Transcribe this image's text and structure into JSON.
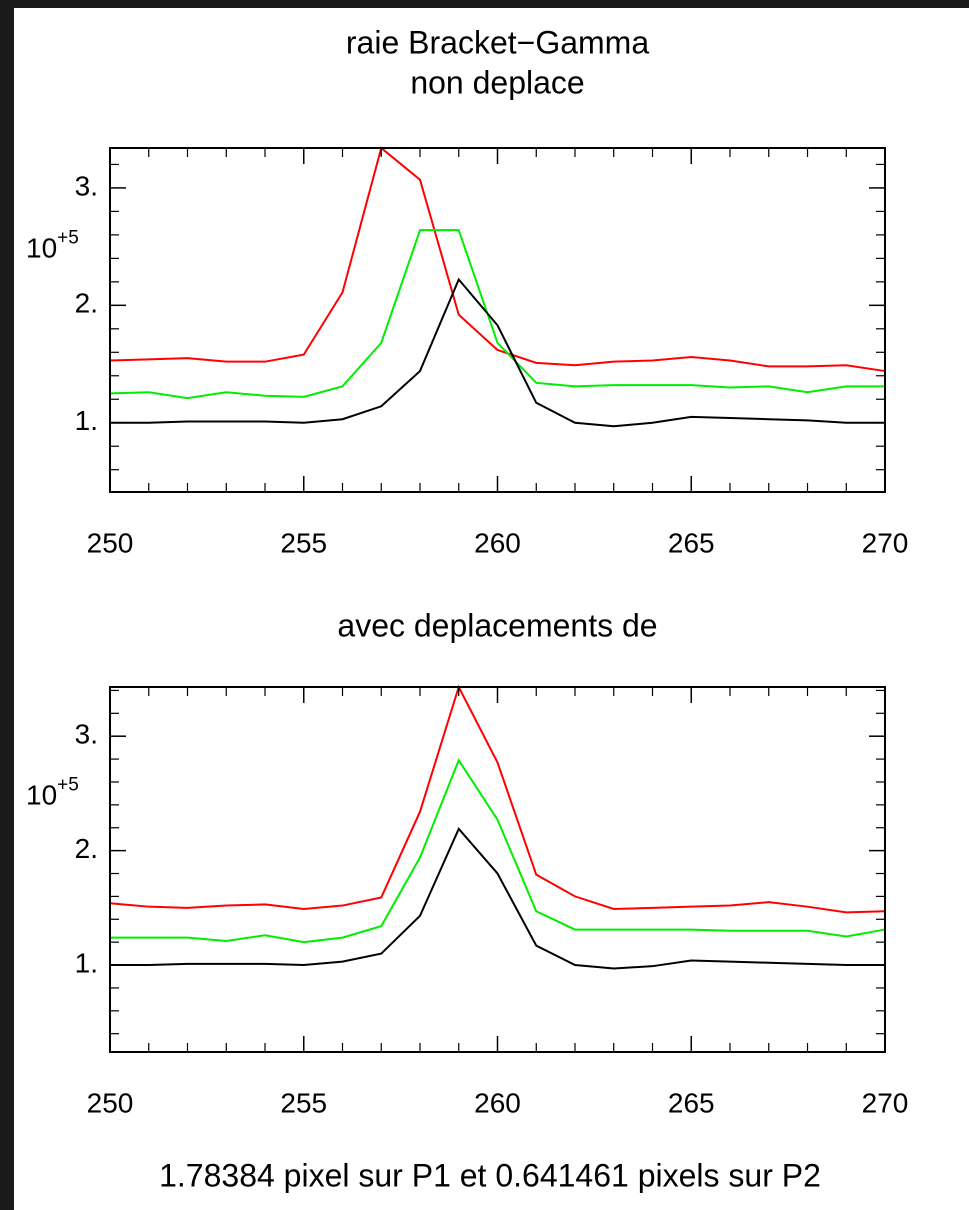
{
  "chart_data": [
    {
      "type": "line",
      "title_lines": [
        "raie Bracket−Gamma",
        "non deplace"
      ],
      "x": [
        250,
        251,
        252,
        253,
        254,
        255,
        256,
        257,
        258,
        259,
        260,
        261,
        262,
        263,
        264,
        265,
        266,
        267,
        268,
        269,
        270
      ],
      "series": [
        {
          "color": "#ff0000",
          "values": [
            1.53,
            1.54,
            1.55,
            1.52,
            1.52,
            1.58,
            2.11,
            3.34,
            3.07,
            1.92,
            1.62,
            1.51,
            1.49,
            1.52,
            1.53,
            1.56,
            1.53,
            1.48,
            1.48,
            1.49,
            1.44
          ]
        },
        {
          "color": "#00ee00",
          "values": [
            1.25,
            1.26,
            1.21,
            1.26,
            1.23,
            1.22,
            1.31,
            1.68,
            2.64,
            2.64,
            1.68,
            1.34,
            1.31,
            1.32,
            1.32,
            1.32,
            1.3,
            1.31,
            1.26,
            1.31,
            1.31
          ]
        },
        {
          "color": "#000000",
          "values": [
            1.0,
            1.0,
            1.01,
            1.01,
            1.01,
            1.0,
            1.03,
            1.14,
            1.44,
            2.22,
            1.83,
            1.17,
            1.0,
            0.97,
            1.0,
            1.05,
            1.04,
            1.03,
            1.02,
            1.0,
            1.0
          ]
        }
      ],
      "xlim": [
        250,
        270
      ],
      "xticks": [
        250,
        255,
        260,
        265,
        270
      ],
      "ylim": [
        0.41,
        3.34
      ],
      "yticks": [
        {
          "value": 1,
          "label": "1."
        },
        {
          "value": 2,
          "label": "2."
        },
        {
          "value": 3,
          "label": "3."
        }
      ],
      "y_multiplier": {
        "base": "10",
        "exponent": "+5"
      }
    },
    {
      "type": "line",
      "title_lines": [
        "avec deplacements de"
      ],
      "caption": "1.78384 pixel sur P1 et 0.641461 pixels sur P2",
      "x": [
        250,
        251,
        252,
        253,
        254,
        255,
        256,
        257,
        258,
        259,
        260,
        261,
        262,
        263,
        264,
        265,
        266,
        267,
        268,
        269,
        270
      ],
      "series": [
        {
          "color": "#ff0000",
          "values": [
            1.54,
            1.51,
            1.5,
            1.52,
            1.53,
            1.49,
            1.52,
            1.59,
            2.34,
            3.43,
            2.77,
            1.79,
            1.6,
            1.49,
            1.5,
            1.51,
            1.52,
            1.55,
            1.51,
            1.46,
            1.47
          ]
        },
        {
          "color": "#00ee00",
          "values": [
            1.24,
            1.24,
            1.24,
            1.21,
            1.26,
            1.2,
            1.24,
            1.34,
            1.94,
            2.79,
            2.27,
            1.47,
            1.31,
            1.31,
            1.31,
            1.31,
            1.3,
            1.3,
            1.3,
            1.25,
            1.31
          ]
        },
        {
          "color": "#000000",
          "values": [
            1.0,
            1.0,
            1.01,
            1.01,
            1.01,
            1.0,
            1.03,
            1.1,
            1.43,
            2.19,
            1.8,
            1.17,
            1.0,
            0.97,
            0.99,
            1.04,
            1.03,
            1.02,
            1.01,
            1.0,
            1.0
          ]
        }
      ],
      "xlim": [
        250,
        270
      ],
      "xticks": [
        250,
        255,
        260,
        265,
        270
      ],
      "ylim": [
        0.24,
        3.43
      ],
      "yticks": [
        {
          "value": 1,
          "label": "1."
        },
        {
          "value": 2,
          "label": "2."
        },
        {
          "value": 3,
          "label": "3."
        }
      ],
      "y_multiplier": {
        "base": "10",
        "exponent": "+5"
      }
    }
  ]
}
